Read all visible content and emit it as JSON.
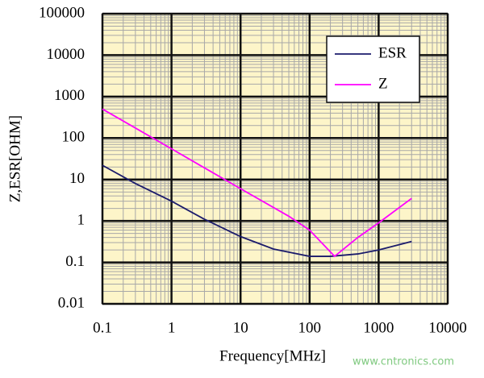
{
  "chart_data": {
    "type": "line",
    "x_label": "Frequency[MHz]",
    "y_label": "Z,ESR[OHM]",
    "x_log": true,
    "y_log": true,
    "xlim": [
      0.1,
      10000
    ],
    "ylim": [
      0.01,
      100000
    ],
    "xticks": [
      0.1,
      1,
      10,
      100,
      1000,
      10000
    ],
    "yticks": [
      0.01,
      0.1,
      1,
      10,
      100,
      1000,
      10000,
      100000
    ],
    "grid": true,
    "minor_grid": true,
    "legend": "upper right",
    "background": "#fdf5c9",
    "series": [
      {
        "name": "ESR",
        "color": "#1b1b6b",
        "x": [
          0.1,
          0.3,
          1,
          3,
          10,
          30,
          100,
          200,
          500,
          1000,
          3000
        ],
        "values": [
          22,
          8,
          3,
          1.1,
          0.42,
          0.21,
          0.14,
          0.14,
          0.16,
          0.2,
          0.32
        ]
      },
      {
        "name": "Z",
        "color": "#ff00ff",
        "x": [
          0.1,
          1,
          10,
          50,
          100,
          230,
          500,
          1000,
          3000
        ],
        "values": [
          500,
          55,
          6,
          1.3,
          0.6,
          0.14,
          0.4,
          0.9,
          3.5
        ]
      }
    ],
    "watermark": "www.cntronics.com"
  }
}
